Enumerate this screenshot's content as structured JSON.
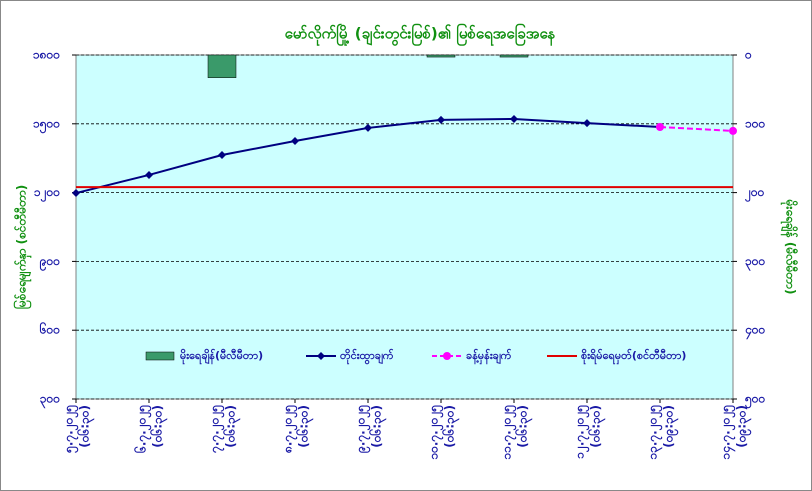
{
  "chart_data": {
    "type": "line",
    "title": "မော်လိုက်မြို့ (ချင်းတွင်းမြစ်)၏ မြစ်ရေအခြေအနေ",
    "y_label": "မြစ်ရေမျက်နှာ (စင်တီမီတာ)",
    "y2_label": "မိုးရေချိန် (မီလီမီတာ)",
    "categories": [
      [
        "၅.၇.၂၀၂၅",
        "(၀၆:၃၀)"
      ],
      [
        "၆.၇.၂၀၂၅",
        "(၀၆:၃၀)"
      ],
      [
        "၇.၇.၂၀၂၅",
        "(၀၆:၃၀)"
      ],
      [
        "၈.၇.၂၀၂၅",
        "(၀၆:၃၀)"
      ],
      [
        "၉.၇.၂၀၂၅",
        "(၀၆:၃၀)"
      ],
      [
        "၁၀.၇.၂၀၂၅",
        "(၀၆:၃၀)"
      ],
      [
        "၁၁.၇.၂၀၂၅",
        "(၀၆:၃၀)"
      ],
      [
        "၁၂.၇.၂၀၂၅",
        "(၀၆:၃၀)"
      ],
      [
        "၁၃.၇.၂၀၂၅",
        "(၀၉:၃၀)"
      ],
      [
        "၁၄.၇.၂၀၂၅",
        "(၀၉:၃၀)"
      ]
    ],
    "series": [
      {
        "name": "မိုးရေချိန်(မီလီမီတာ)",
        "type": "bar",
        "axis": "y2",
        "color": "#3a9a6a",
        "values": [
          0,
          0,
          33,
          0,
          0,
          3,
          3,
          0,
          0,
          0
        ]
      },
      {
        "name": "တိုင်းထွာချက်",
        "type": "line",
        "marker": "diamond",
        "color": "#000080",
        "values": [
          1198,
          1277,
          1364,
          1425,
          1482,
          1517,
          1521,
          1503,
          1486,
          null
        ]
      },
      {
        "name": "ခန့်မှန်းချက်",
        "type": "line",
        "marker": "circle",
        "dashed": true,
        "color": "#ff00ff",
        "values": [
          null,
          null,
          null,
          null,
          null,
          null,
          null,
          null,
          1486,
          1469
        ]
      },
      {
        "name": "စိုးရိမ်ရေမှတ်(စင်တီမီတာ)",
        "type": "line",
        "color": "#e00000",
        "values": [
          1224,
          1224,
          1224,
          1224,
          1224,
          1224,
          1224,
          1224,
          1224,
          1224
        ]
      }
    ],
    "ylim": [
      300,
      1800
    ],
    "yticks": [
      {
        "value": 300,
        "label": "၃၀၀"
      },
      {
        "value": 600,
        "label": "၆၀၀"
      },
      {
        "value": 900,
        "label": "၉၀၀"
      },
      {
        "value": 1200,
        "label": "၁၂၀၀"
      },
      {
        "value": 1500,
        "label": "၁၅၀၀"
      },
      {
        "value": 1800,
        "label": "၁၈၀၀"
      }
    ],
    "y2lim": [
      0,
      500
    ],
    "y2_inverted": true,
    "y2ticks": [
      {
        "value": 0,
        "label": "၀"
      },
      {
        "value": 100,
        "label": "၁၀၀"
      },
      {
        "value": 200,
        "label": "၂၀၀"
      },
      {
        "value": 300,
        "label": "၃၀၀"
      },
      {
        "value": 400,
        "label": "၄၀၀"
      },
      {
        "value": 500,
        "label": "၅၀၀"
      }
    ],
    "grid": true,
    "plot_background": "#ccffff"
  }
}
